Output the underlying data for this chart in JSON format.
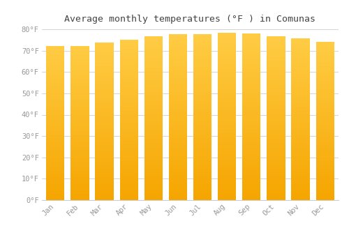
{
  "title": "Average monthly temperatures (°F ) in Comunas",
  "months": [
    "Jan",
    "Feb",
    "Mar",
    "Apr",
    "May",
    "Jun",
    "Jul",
    "Aug",
    "Sep",
    "Oct",
    "Nov",
    "Dec"
  ],
  "values": [
    72.3,
    72.3,
    73.8,
    75.2,
    76.6,
    77.8,
    77.6,
    78.3,
    78.1,
    76.8,
    75.7,
    74.0
  ],
  "bar_color_bottom": "#F5A500",
  "bar_color_top": "#FFCC44",
  "background_color": "#FFFFFF",
  "grid_color": "#CCCCCC",
  "tick_label_color": "#999999",
  "title_color": "#444444",
  "ylim": [
    0,
    80
  ],
  "yticks": [
    0,
    10,
    20,
    30,
    40,
    50,
    60,
    70,
    80
  ],
  "ytick_labels": [
    "0°F",
    "10°F",
    "20°F",
    "30°F",
    "40°F",
    "50°F",
    "60°F",
    "70°F",
    "80°F"
  ],
  "bar_width": 0.75,
  "n_strips": 200
}
